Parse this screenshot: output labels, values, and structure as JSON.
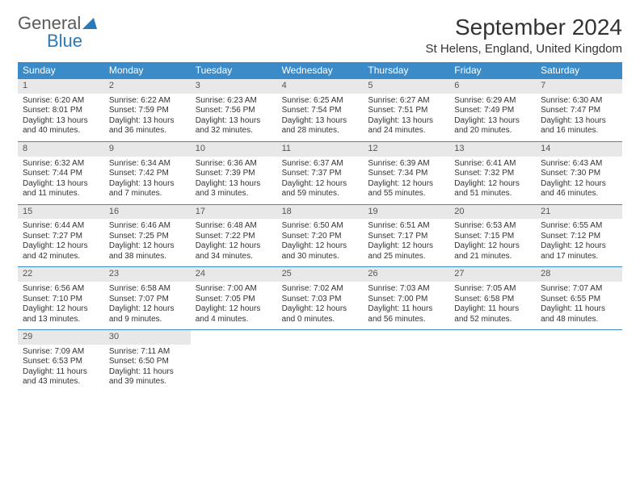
{
  "logo": {
    "text1": "General",
    "text2": "Blue"
  },
  "title": "September 2024",
  "location": "St Helens, England, United Kingdom",
  "colors": {
    "header_bg": "#3b8bc9",
    "header_text": "#ffffff",
    "daynum_bg": "#e8e8e8",
    "border": "#3b8bc9",
    "logo_blue": "#2a7ab9",
    "logo_gray": "#5a5a5a"
  },
  "typography": {
    "title_fontsize": 28,
    "location_fontsize": 15,
    "header_fontsize": 12,
    "cell_fontsize": 10
  },
  "day_names": [
    "Sunday",
    "Monday",
    "Tuesday",
    "Wednesday",
    "Thursday",
    "Friday",
    "Saturday"
  ],
  "weeks": [
    [
      {
        "num": "1",
        "sunrise": "Sunrise: 6:20 AM",
        "sunset": "Sunset: 8:01 PM",
        "daylight": "Daylight: 13 hours and 40 minutes."
      },
      {
        "num": "2",
        "sunrise": "Sunrise: 6:22 AM",
        "sunset": "Sunset: 7:59 PM",
        "daylight": "Daylight: 13 hours and 36 minutes."
      },
      {
        "num": "3",
        "sunrise": "Sunrise: 6:23 AM",
        "sunset": "Sunset: 7:56 PM",
        "daylight": "Daylight: 13 hours and 32 minutes."
      },
      {
        "num": "4",
        "sunrise": "Sunrise: 6:25 AM",
        "sunset": "Sunset: 7:54 PM",
        "daylight": "Daylight: 13 hours and 28 minutes."
      },
      {
        "num": "5",
        "sunrise": "Sunrise: 6:27 AM",
        "sunset": "Sunset: 7:51 PM",
        "daylight": "Daylight: 13 hours and 24 minutes."
      },
      {
        "num": "6",
        "sunrise": "Sunrise: 6:29 AM",
        "sunset": "Sunset: 7:49 PM",
        "daylight": "Daylight: 13 hours and 20 minutes."
      },
      {
        "num": "7",
        "sunrise": "Sunrise: 6:30 AM",
        "sunset": "Sunset: 7:47 PM",
        "daylight": "Daylight: 13 hours and 16 minutes."
      }
    ],
    [
      {
        "num": "8",
        "sunrise": "Sunrise: 6:32 AM",
        "sunset": "Sunset: 7:44 PM",
        "daylight": "Daylight: 13 hours and 11 minutes."
      },
      {
        "num": "9",
        "sunrise": "Sunrise: 6:34 AM",
        "sunset": "Sunset: 7:42 PM",
        "daylight": "Daylight: 13 hours and 7 minutes."
      },
      {
        "num": "10",
        "sunrise": "Sunrise: 6:36 AM",
        "sunset": "Sunset: 7:39 PM",
        "daylight": "Daylight: 13 hours and 3 minutes."
      },
      {
        "num": "11",
        "sunrise": "Sunrise: 6:37 AM",
        "sunset": "Sunset: 7:37 PM",
        "daylight": "Daylight: 12 hours and 59 minutes."
      },
      {
        "num": "12",
        "sunrise": "Sunrise: 6:39 AM",
        "sunset": "Sunset: 7:34 PM",
        "daylight": "Daylight: 12 hours and 55 minutes."
      },
      {
        "num": "13",
        "sunrise": "Sunrise: 6:41 AM",
        "sunset": "Sunset: 7:32 PM",
        "daylight": "Daylight: 12 hours and 51 minutes."
      },
      {
        "num": "14",
        "sunrise": "Sunrise: 6:43 AM",
        "sunset": "Sunset: 7:30 PM",
        "daylight": "Daylight: 12 hours and 46 minutes."
      }
    ],
    [
      {
        "num": "15",
        "sunrise": "Sunrise: 6:44 AM",
        "sunset": "Sunset: 7:27 PM",
        "daylight": "Daylight: 12 hours and 42 minutes."
      },
      {
        "num": "16",
        "sunrise": "Sunrise: 6:46 AM",
        "sunset": "Sunset: 7:25 PM",
        "daylight": "Daylight: 12 hours and 38 minutes."
      },
      {
        "num": "17",
        "sunrise": "Sunrise: 6:48 AM",
        "sunset": "Sunset: 7:22 PM",
        "daylight": "Daylight: 12 hours and 34 minutes."
      },
      {
        "num": "18",
        "sunrise": "Sunrise: 6:50 AM",
        "sunset": "Sunset: 7:20 PM",
        "daylight": "Daylight: 12 hours and 30 minutes."
      },
      {
        "num": "19",
        "sunrise": "Sunrise: 6:51 AM",
        "sunset": "Sunset: 7:17 PM",
        "daylight": "Daylight: 12 hours and 25 minutes."
      },
      {
        "num": "20",
        "sunrise": "Sunrise: 6:53 AM",
        "sunset": "Sunset: 7:15 PM",
        "daylight": "Daylight: 12 hours and 21 minutes."
      },
      {
        "num": "21",
        "sunrise": "Sunrise: 6:55 AM",
        "sunset": "Sunset: 7:12 PM",
        "daylight": "Daylight: 12 hours and 17 minutes."
      }
    ],
    [
      {
        "num": "22",
        "sunrise": "Sunrise: 6:56 AM",
        "sunset": "Sunset: 7:10 PM",
        "daylight": "Daylight: 12 hours and 13 minutes."
      },
      {
        "num": "23",
        "sunrise": "Sunrise: 6:58 AM",
        "sunset": "Sunset: 7:07 PM",
        "daylight": "Daylight: 12 hours and 9 minutes."
      },
      {
        "num": "24",
        "sunrise": "Sunrise: 7:00 AM",
        "sunset": "Sunset: 7:05 PM",
        "daylight": "Daylight: 12 hours and 4 minutes."
      },
      {
        "num": "25",
        "sunrise": "Sunrise: 7:02 AM",
        "sunset": "Sunset: 7:03 PM",
        "daylight": "Daylight: 12 hours and 0 minutes."
      },
      {
        "num": "26",
        "sunrise": "Sunrise: 7:03 AM",
        "sunset": "Sunset: 7:00 PM",
        "daylight": "Daylight: 11 hours and 56 minutes."
      },
      {
        "num": "27",
        "sunrise": "Sunrise: 7:05 AM",
        "sunset": "Sunset: 6:58 PM",
        "daylight": "Daylight: 11 hours and 52 minutes."
      },
      {
        "num": "28",
        "sunrise": "Sunrise: 7:07 AM",
        "sunset": "Sunset: 6:55 PM",
        "daylight": "Daylight: 11 hours and 48 minutes."
      }
    ],
    [
      {
        "num": "29",
        "sunrise": "Sunrise: 7:09 AM",
        "sunset": "Sunset: 6:53 PM",
        "daylight": "Daylight: 11 hours and 43 minutes."
      },
      {
        "num": "30",
        "sunrise": "Sunrise: 7:11 AM",
        "sunset": "Sunset: 6:50 PM",
        "daylight": "Daylight: 11 hours and 39 minutes."
      },
      null,
      null,
      null,
      null,
      null
    ]
  ]
}
